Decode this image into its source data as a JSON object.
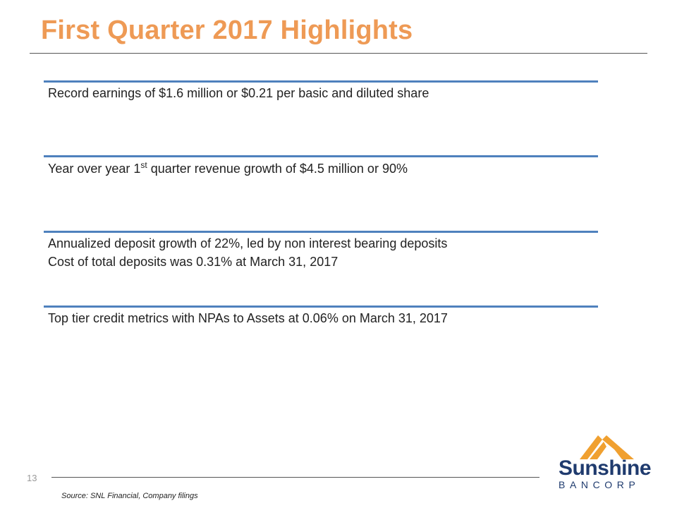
{
  "slide": {
    "title": "First Quarter 2017 Highlights",
    "page_number": "13",
    "source": "Source: SNL Financial,  Company filings"
  },
  "highlights": [
    {
      "lines": [
        "Record earnings of $1.6 million or  $0.21 per basic and diluted share"
      ]
    },
    {
      "prefix": "Year over year 1",
      "superscript": "st",
      "suffix": " quarter revenue growth of $4.5 million or 90%"
    },
    {
      "lines": [
        "Annualized deposit growth of 22%, led by non interest bearing deposits",
        "Cost of total deposits was 0.31% at March 31, 2017"
      ]
    },
    {
      "lines": [
        "Top tier credit metrics with NPAs to Assets at 0.06% on March 31, 2017"
      ]
    }
  ],
  "logo": {
    "name": "Sunshine",
    "subtitle": "BANCORP",
    "icon": "sunshine-rays-logo-icon",
    "colors": {
      "mark": "#f0a030",
      "text": "#1f3b6e"
    }
  },
  "colors": {
    "title": "#ee9a55",
    "section_rule": "#4f81bd",
    "text": "#222222"
  }
}
